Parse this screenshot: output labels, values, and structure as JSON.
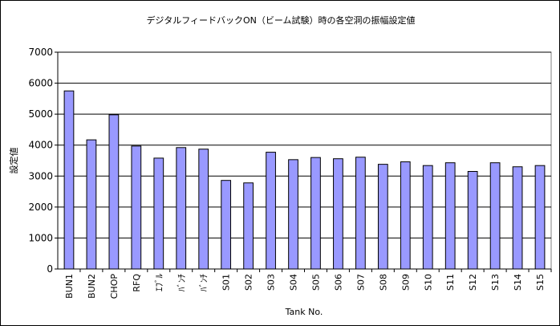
{
  "chart_data": {
    "type": "bar",
    "title": "デジタルフィードバックON（ビーム試験）時の各空洞の振幅設定値",
    "xlabel": "Tank No.",
    "ylabel": "設定値",
    "ylim": [
      0,
      7000
    ],
    "yticks": [
      0,
      1000,
      2000,
      3000,
      4000,
      5000,
      6000,
      7000
    ],
    "grid": true,
    "legend": "none",
    "bar_color": "#9999ff",
    "bar_edge_color": "#000000",
    "categories": [
      "BUN1",
      "BUN2",
      "CHOP",
      "RFQ",
      "ｴﾌﾞﾙ",
      "ﾊﾞﾝﾁ",
      "ﾊﾞﾝﾁ",
      "S01",
      "S02",
      "S03",
      "S04",
      "S05",
      "S06",
      "S07",
      "S08",
      "S09",
      "S10",
      "S11",
      "S12",
      "S13",
      "S14",
      "S15"
    ],
    "values": [
      5750,
      4170,
      4980,
      3970,
      3580,
      3920,
      3870,
      2860,
      2780,
      3770,
      3530,
      3600,
      3560,
      3610,
      3380,
      3460,
      3340,
      3430,
      3150,
      3430,
      3300,
      3340
    ]
  }
}
